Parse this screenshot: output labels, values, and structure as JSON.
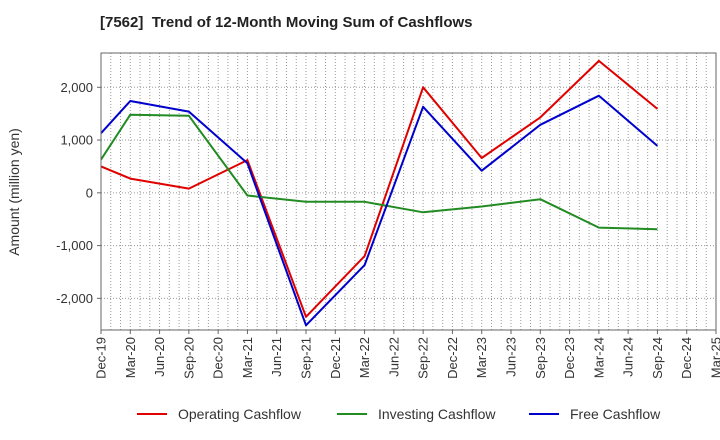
{
  "chart_data": {
    "type": "line",
    "title": "[7562]  Trend of 12-Month Moving Sum of Cashflows",
    "xlabel": "",
    "ylabel": "Amount (million yen)",
    "x_ticks": [
      "Dec-19",
      "Mar-20",
      "Jun-20",
      "Sep-20",
      "Dec-20",
      "Mar-21",
      "Jun-21",
      "Sep-21",
      "Dec-21",
      "Mar-22",
      "Jun-22",
      "Sep-22",
      "Dec-22",
      "Mar-23",
      "Jun-23",
      "Sep-23",
      "Dec-23",
      "Mar-24",
      "Jun-24",
      "Sep-24",
      "Dec-24",
      "Mar-25"
    ],
    "y_ticks": [
      2000,
      1000,
      0,
      -1000,
      -2000
    ],
    "y_tick_labels": [
      "2,000",
      "1,000",
      "0",
      "-1,000",
      "-2,000"
    ],
    "ylim": [
      -2600,
      2650
    ],
    "grid": true,
    "legend_position": "bottom",
    "series": [
      {
        "name": "Operating Cashflow",
        "color": "#e00000",
        "points": [
          [
            "Dec-19",
            500
          ],
          [
            "Mar-20",
            270
          ],
          [
            "Sep-20",
            80
          ],
          [
            "Mar-21",
            620
          ],
          [
            "Sep-21",
            -2350
          ],
          [
            "Mar-22",
            -1200
          ],
          [
            "Sep-22",
            2000
          ],
          [
            "Mar-23",
            660
          ],
          [
            "Sep-23",
            1430
          ],
          [
            "Mar-24",
            2500
          ],
          [
            "Sep-24",
            1590
          ]
        ]
      },
      {
        "name": "Investing Cashflow",
        "color": "#228b22",
        "points": [
          [
            "Dec-19",
            630
          ],
          [
            "Mar-20",
            1480
          ],
          [
            "Sep-20",
            1460
          ],
          [
            "Mar-21",
            -50
          ],
          [
            "Sep-21",
            -170
          ],
          [
            "Mar-22",
            -170
          ],
          [
            "Sep-22",
            -370
          ],
          [
            "Mar-23",
            -260
          ],
          [
            "Sep-23",
            -120
          ],
          [
            "Mar-24",
            -660
          ],
          [
            "Sep-24",
            -690
          ]
        ]
      },
      {
        "name": "Free Cashflow",
        "color": "#0000cc",
        "points": [
          [
            "Dec-19",
            1130
          ],
          [
            "Mar-20",
            1740
          ],
          [
            "Sep-20",
            1540
          ],
          [
            "Mar-21",
            560
          ],
          [
            "Sep-21",
            -2510
          ],
          [
            "Mar-22",
            -1370
          ],
          [
            "Sep-22",
            1630
          ],
          [
            "Mar-23",
            420
          ],
          [
            "Sep-23",
            1290
          ],
          [
            "Mar-24",
            1840
          ],
          [
            "Sep-24",
            890
          ]
        ]
      }
    ]
  }
}
